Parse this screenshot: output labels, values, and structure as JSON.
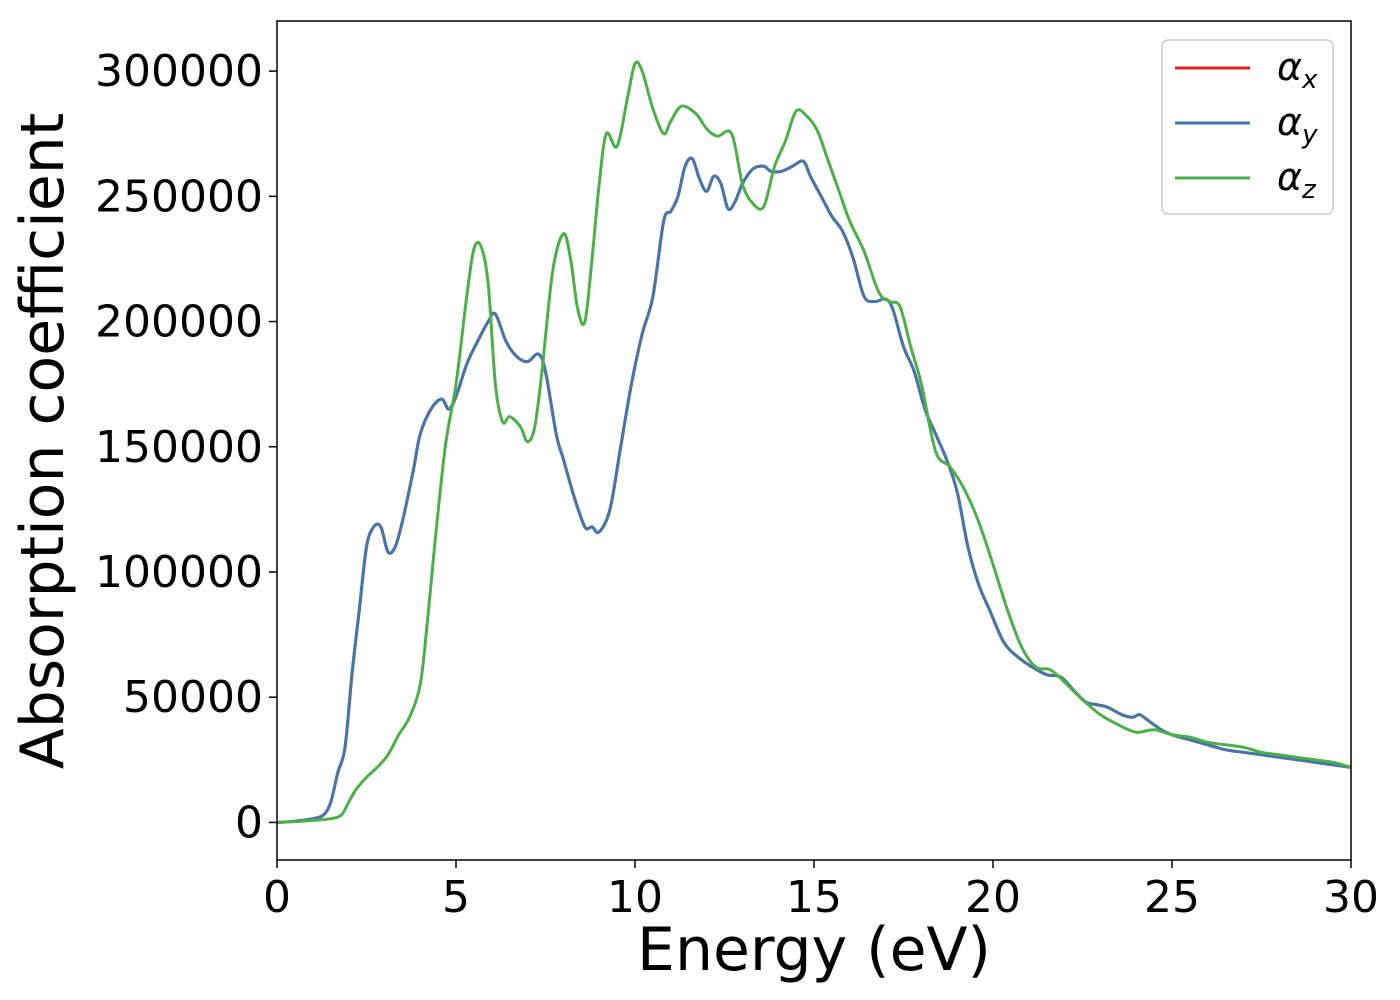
{
  "chart_data": {
    "type": "line",
    "title": "",
    "xlabel": "Energy (eV)",
    "ylabel": "Absorption coefficient",
    "xlim": [
      0,
      30
    ],
    "ylim": [
      -15000,
      320000
    ],
    "xticks": [
      0,
      5,
      10,
      15,
      20,
      25,
      30
    ],
    "xtick_labels": [
      "0",
      "5",
      "10",
      "15",
      "20",
      "25",
      "30"
    ],
    "yticks": [
      0,
      50000,
      100000,
      150000,
      200000,
      250000,
      300000
    ],
    "ytick_labels": [
      "0",
      "50000",
      "100000",
      "150000",
      "200000",
      "250000",
      "300000"
    ],
    "grid": false,
    "legend_position": "top-right",
    "series": [
      {
        "name": "α_x",
        "legend_symbol": "α",
        "legend_sub": "x",
        "color": "#e41a1c",
        "x": [
          0,
          0.5,
          1,
          1.3,
          1.5,
          1.7,
          1.9,
          2.1,
          2.3,
          2.5,
          2.7,
          2.9,
          3.1,
          3.3,
          3.5,
          3.8,
          4.0,
          4.3,
          4.6,
          4.8,
          5.0,
          5.3,
          5.6,
          5.9,
          6.1,
          6.4,
          6.7,
          7.0,
          7.3,
          7.5,
          7.8,
          8.0,
          8.3,
          8.6,
          8.8,
          9.0,
          9.3,
          9.6,
          9.9,
          10.2,
          10.5,
          10.8,
          11.0,
          11.2,
          11.4,
          11.6,
          11.8,
          12.0,
          12.2,
          12.4,
          12.6,
          12.8,
          13.0,
          13.3,
          13.6,
          13.8,
          14.1,
          14.4,
          14.7,
          14.9,
          15.2,
          15.5,
          15.8,
          16.1,
          16.4,
          16.7,
          17.0,
          17.2,
          17.5,
          17.8,
          18.1,
          18.4,
          18.7,
          19.0,
          19.3,
          19.6,
          19.9,
          20.3,
          20.7,
          21.1,
          21.5,
          21.9,
          22.3,
          22.6,
          22.9,
          23.2,
          23.6,
          23.9,
          24.1,
          24.4,
          24.7,
          25.0,
          25.5,
          26.0,
          26.5,
          27.0,
          27.5,
          28.0,
          28.5,
          29.0,
          29.5,
          30.0
        ],
        "y": [
          0,
          500,
          1500,
          3000,
          8000,
          20000,
          30000,
          60000,
          85000,
          110000,
          118000,
          118000,
          108000,
          110000,
          120000,
          140000,
          155000,
          165000,
          169000,
          165000,
          170000,
          183000,
          192000,
          200000,
          203000,
          192000,
          186000,
          184000,
          187000,
          180000,
          155000,
          145000,
          130000,
          118000,
          118000,
          116000,
          125000,
          150000,
          175000,
          195000,
          210000,
          240000,
          244000,
          250000,
          262000,
          265000,
          257000,
          252000,
          258000,
          255000,
          245000,
          248000,
          255000,
          261000,
          262000,
          260000,
          260000,
          262000,
          264000,
          258000,
          250000,
          242000,
          236000,
          225000,
          210000,
          208000,
          209000,
          205000,
          190000,
          180000,
          165000,
          155000,
          145000,
          132000,
          110000,
          95000,
          85000,
          72000,
          66000,
          62000,
          59000,
          58000,
          52000,
          48000,
          47000,
          46000,
          43000,
          42000,
          43000,
          40000,
          37000,
          35000,
          33000,
          31000,
          29000,
          28000,
          27000,
          26000,
          25000,
          24000,
          23000,
          22000
        ]
      },
      {
        "name": "α_y",
        "legend_symbol": "α",
        "legend_sub": "y",
        "color": "#4477aa",
        "x": [
          0,
          0.5,
          1,
          1.3,
          1.5,
          1.7,
          1.9,
          2.1,
          2.3,
          2.5,
          2.7,
          2.9,
          3.1,
          3.3,
          3.5,
          3.8,
          4.0,
          4.3,
          4.6,
          4.8,
          5.0,
          5.3,
          5.6,
          5.9,
          6.1,
          6.4,
          6.7,
          7.0,
          7.3,
          7.5,
          7.8,
          8.0,
          8.3,
          8.6,
          8.8,
          9.0,
          9.3,
          9.6,
          9.9,
          10.2,
          10.5,
          10.8,
          11.0,
          11.2,
          11.4,
          11.6,
          11.8,
          12.0,
          12.2,
          12.4,
          12.6,
          12.8,
          13.0,
          13.3,
          13.6,
          13.8,
          14.1,
          14.4,
          14.7,
          14.9,
          15.2,
          15.5,
          15.8,
          16.1,
          16.4,
          16.7,
          17.0,
          17.2,
          17.5,
          17.8,
          18.1,
          18.4,
          18.7,
          19.0,
          19.3,
          19.6,
          19.9,
          20.3,
          20.7,
          21.1,
          21.5,
          21.9,
          22.3,
          22.6,
          22.9,
          23.2,
          23.6,
          23.9,
          24.1,
          24.4,
          24.7,
          25.0,
          25.5,
          26.0,
          26.5,
          27.0,
          27.5,
          28.0,
          28.5,
          29.0,
          29.5,
          30.0
        ],
        "y": [
          0,
          500,
          1500,
          3000,
          8000,
          20000,
          30000,
          60000,
          85000,
          110000,
          118000,
          118000,
          108000,
          110000,
          120000,
          140000,
          155000,
          165000,
          169000,
          165000,
          170000,
          183000,
          192000,
          200000,
          203000,
          192000,
          186000,
          184000,
          187000,
          180000,
          155000,
          145000,
          130000,
          118000,
          118000,
          116000,
          125000,
          150000,
          175000,
          195000,
          210000,
          240000,
          244000,
          250000,
          262000,
          265000,
          257000,
          252000,
          258000,
          255000,
          245000,
          248000,
          255000,
          261000,
          262000,
          260000,
          260000,
          262000,
          264000,
          258000,
          250000,
          242000,
          236000,
          225000,
          210000,
          208000,
          209000,
          205000,
          190000,
          180000,
          165000,
          155000,
          145000,
          132000,
          110000,
          95000,
          85000,
          72000,
          66000,
          62000,
          59000,
          58000,
          52000,
          48000,
          47000,
          46000,
          43000,
          42000,
          43000,
          40000,
          37000,
          35000,
          33000,
          31000,
          29000,
          28000,
          27000,
          26000,
          25000,
          24000,
          23000,
          22000
        ]
      },
      {
        "name": "α_z",
        "legend_symbol": "α",
        "legend_sub": "z",
        "color": "#4daf4a",
        "x": [
          0,
          0.5,
          1,
          1.5,
          1.8,
          2.0,
          2.2,
          2.5,
          2.8,
          3.1,
          3.4,
          3.7,
          4.0,
          4.2,
          4.4,
          4.7,
          5.0,
          5.3,
          5.5,
          5.7,
          5.9,
          6.1,
          6.3,
          6.5,
          6.8,
          7.0,
          7.2,
          7.4,
          7.7,
          8.0,
          8.2,
          8.4,
          8.6,
          8.8,
          9.0,
          9.2,
          9.5,
          9.8,
          10.0,
          10.2,
          10.5,
          10.8,
          11.0,
          11.3,
          11.7,
          12.0,
          12.3,
          12.7,
          13.0,
          13.3,
          13.6,
          13.9,
          14.2,
          14.5,
          14.8,
          15.1,
          15.4,
          15.7,
          16.0,
          16.4,
          16.8,
          17.1,
          17.4,
          17.7,
          18.0,
          18.4,
          18.8,
          19.2,
          19.6,
          20.0,
          20.4,
          20.8,
          21.2,
          21.6,
          22.0,
          22.5,
          23.0,
          23.5,
          24.0,
          24.5,
          25.0,
          25.5,
          26.0,
          26.5,
          27.0,
          27.5,
          28.0,
          28.5,
          29.0,
          29.5,
          30.0
        ],
        "y": [
          0,
          300,
          800,
          1500,
          3000,
          8000,
          13000,
          18000,
          22000,
          27000,
          35000,
          42000,
          55000,
          80000,
          110000,
          150000,
          175000,
          210000,
          229000,
          230000,
          215000,
          175000,
          160000,
          162000,
          158000,
          152000,
          158000,
          180000,
          220000,
          235000,
          225000,
          205000,
          200000,
          225000,
          255000,
          275000,
          270000,
          290000,
          303000,
          300000,
          285000,
          275000,
          280000,
          286000,
          283000,
          277000,
          274000,
          275000,
          255000,
          247000,
          246000,
          262000,
          272000,
          284000,
          282000,
          276000,
          264000,
          252000,
          240000,
          228000,
          212000,
          208000,
          206000,
          190000,
          175000,
          148000,
          142000,
          133000,
          120000,
          103000,
          85000,
          70000,
          62000,
          61000,
          56000,
          49000,
          43000,
          39000,
          36000,
          37000,
          35000,
          34000,
          32000,
          31000,
          30000,
          28000,
          27000,
          26000,
          25000,
          24000,
          22000
        ]
      }
    ]
  }
}
